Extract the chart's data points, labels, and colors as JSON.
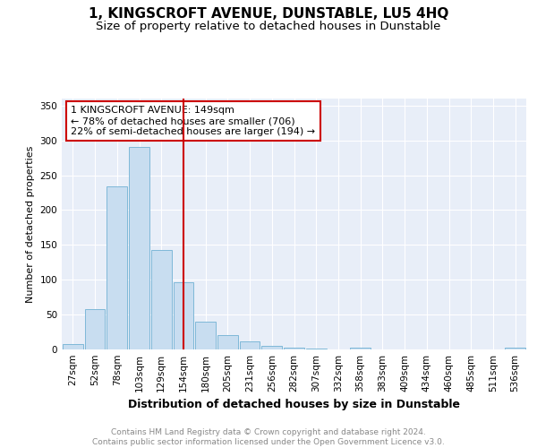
{
  "title": "1, KINGSCROFT AVENUE, DUNSTABLE, LU5 4HQ",
  "subtitle": "Size of property relative to detached houses in Dunstable",
  "xlabel": "Distribution of detached houses by size in Dunstable",
  "ylabel": "Number of detached properties",
  "bar_labels": [
    "27sqm",
    "52sqm",
    "78sqm",
    "103sqm",
    "129sqm",
    "154sqm",
    "180sqm",
    "205sqm",
    "231sqm",
    "256sqm",
    "282sqm",
    "307sqm",
    "332sqm",
    "358sqm",
    "383sqm",
    "409sqm",
    "434sqm",
    "460sqm",
    "485sqm",
    "511sqm",
    "536sqm"
  ],
  "bar_values": [
    8,
    58,
    234,
    290,
    143,
    97,
    40,
    21,
    12,
    5,
    2,
    1,
    0,
    3,
    0,
    0,
    0,
    0,
    0,
    0,
    2
  ],
  "bar_color": "#c8ddf0",
  "bar_edge_color": "#7fb8d8",
  "vline_x": 5,
  "vline_color": "#cc0000",
  "annotation_text": "1 KINGSCROFT AVENUE: 149sqm\n← 78% of detached houses are smaller (706)\n22% of semi-detached houses are larger (194) →",
  "annotation_box_color": "#ffffff",
  "annotation_box_edge": "#cc0000",
  "ylim": [
    0,
    360
  ],
  "yticks": [
    0,
    50,
    100,
    150,
    200,
    250,
    300,
    350
  ],
  "background_color": "#e8eef8",
  "footer_text": "Contains HM Land Registry data © Crown copyright and database right 2024.\nContains public sector information licensed under the Open Government Licence v3.0.",
  "title_fontsize": 11,
  "subtitle_fontsize": 9.5,
  "xlabel_fontsize": 9,
  "ylabel_fontsize": 8,
  "tick_fontsize": 7.5,
  "annotation_fontsize": 8,
  "footer_fontsize": 6.5
}
